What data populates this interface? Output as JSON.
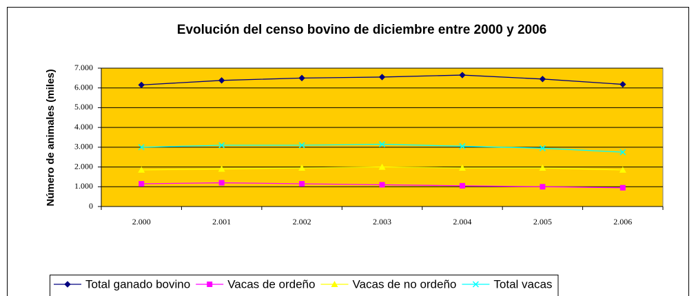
{
  "chart_data": {
    "type": "line",
    "title": "Evolución del censo bovino de diciembre entre 2000 y 2006",
    "y_label": "Número de animales (miles)",
    "categories": [
      "2.000",
      "2.001",
      "2.002",
      "2.003",
      "2.004",
      "2.005",
      "2.006"
    ],
    "series": [
      {
        "name": "Total ganado bovino",
        "color": "#000080",
        "marker": "diamond",
        "values": [
          6150,
          6380,
          6500,
          6550,
          6650,
          6450,
          6180
        ]
      },
      {
        "name": "Vacas de ordeño",
        "color": "#ff00ff",
        "marker": "square",
        "values": [
          1150,
          1200,
          1150,
          1100,
          1050,
          1000,
          950
        ]
      },
      {
        "name": "Vacas de no ordeño",
        "color": "#ffff00",
        "marker": "triangle",
        "values": [
          1850,
          1900,
          1950,
          2000,
          1950,
          1950,
          1850
        ]
      },
      {
        "name": "Total vacas",
        "color": "#00ffff",
        "marker": "x",
        "values": [
          3000,
          3100,
          3100,
          3150,
          3050,
          2950,
          2750
        ]
      }
    ],
    "ylim": [
      0,
      7000
    ],
    "yticks": [
      0,
      {
        "value": 1000,
        "label": "1.000"
      },
      {
        "value": 2000,
        "label": "2.000"
      },
      {
        "value": 3000,
        "label": "3.000"
      },
      {
        "value": 4000,
        "label": "4.000"
      },
      {
        "value": 5000,
        "label": "5.000"
      },
      {
        "value": 6000,
        "label": "6.000"
      },
      {
        "value": 7000,
        "label": "7.000"
      }
    ],
    "grid": true,
    "plot_background": "#ffcc00",
    "legend": "bottom"
  }
}
